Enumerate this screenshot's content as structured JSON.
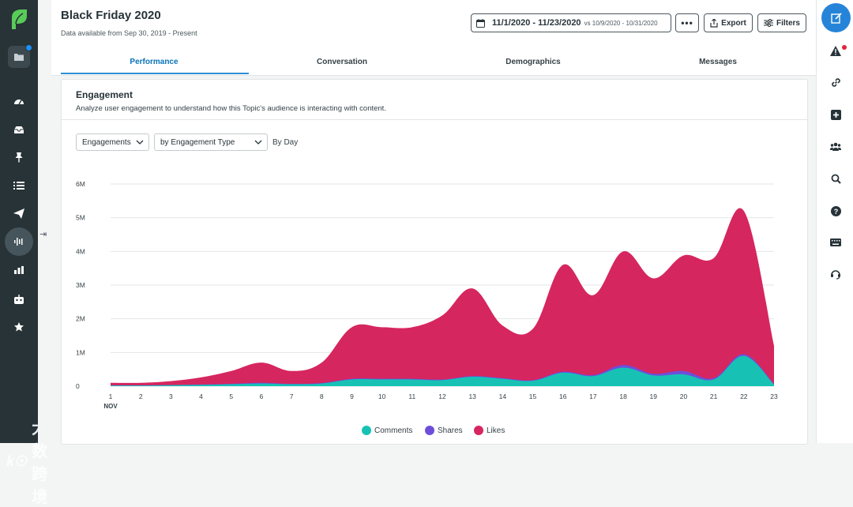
{
  "header": {
    "title": "Black Friday 2020",
    "subtitle": "Data available from Sep 30, 2019 - Present",
    "date_range": "11/1/2020 - 11/23/2020",
    "compare_range": "vs 10/9/2020 - 10/31/2020",
    "more_label": "•••",
    "export_label": "Export",
    "filters_label": "Filters"
  },
  "tabs": [
    {
      "label": "Performance",
      "active": true
    },
    {
      "label": "Conversation",
      "active": false
    },
    {
      "label": "Demographics",
      "active": false
    },
    {
      "label": "Messages",
      "active": false
    }
  ],
  "card": {
    "title": "Engagement",
    "description": "Analyze user engagement to understand how this Topic's audience is interacting with content.",
    "metric_select": "Engagements",
    "group_select": "by Engagement Type",
    "granularity": "By Day"
  },
  "watermark": {
    "logo": "k☉",
    "text": "大数跨境"
  },
  "colors": {
    "comments": "#17c2b5",
    "shares": "#6e4ed8",
    "likes": "#d6265f",
    "accent": "#2f8fd4",
    "sidebar": "#273337"
  },
  "icons": {
    "left": [
      "sprout-logo-icon",
      "folder-icon",
      "dashboard-icon",
      "inbox-icon",
      "pin-icon",
      "list-icon",
      "send-icon",
      "listening-icon",
      "reports-icon",
      "bot-icon",
      "star-icon"
    ],
    "right": [
      "compose-icon",
      "alert-icon",
      "link-icon",
      "add-icon",
      "people-icon",
      "search-icon",
      "help-icon",
      "keyboard-icon",
      "support-icon"
    ]
  },
  "chart_data": {
    "type": "area",
    "title": "Engagement",
    "xlabel": "NOV",
    "ylabel": "",
    "x": [
      1,
      2,
      3,
      4,
      5,
      6,
      7,
      8,
      9,
      10,
      11,
      12,
      13,
      14,
      15,
      16,
      17,
      18,
      19,
      20,
      21,
      22,
      23
    ],
    "y_ticks": [
      "0",
      "1M",
      "2M",
      "3M",
      "4M",
      "5M",
      "6M"
    ],
    "ylim": [
      0,
      6000000
    ],
    "stacked": true,
    "series": [
      {
        "name": "Comments",
        "values": [
          20000,
          20000,
          30000,
          40000,
          60000,
          80000,
          60000,
          80000,
          200000,
          200000,
          200000,
          180000,
          280000,
          220000,
          160000,
          400000,
          300000,
          550000,
          320000,
          350000,
          200000,
          900000,
          50000
        ]
      },
      {
        "name": "Shares",
        "values": [
          5000,
          5000,
          5000,
          10000,
          10000,
          20000,
          10000,
          15000,
          20000,
          20000,
          20000,
          20000,
          20000,
          20000,
          20000,
          30000,
          30000,
          80000,
          50000,
          100000,
          40000,
          50000,
          20000
        ]
      },
      {
        "name": "Likes",
        "values": [
          75000,
          75000,
          115000,
          210000,
          380000,
          600000,
          380000,
          605000,
          1530000,
          1530000,
          1530000,
          1900000,
          2600000,
          1560000,
          1520000,
          3170000,
          2370000,
          3370000,
          2830000,
          3430000,
          3560000,
          4250000,
          1130000
        ]
      }
    ]
  }
}
